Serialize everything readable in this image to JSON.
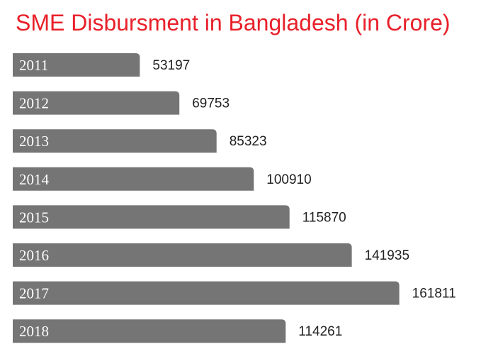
{
  "chart_data": {
    "type": "bar",
    "orientation": "horizontal",
    "title": "SME Disbursment in Bangladesh (in Crore)",
    "xlabel": "",
    "ylabel": "",
    "categories": [
      "2011",
      "2012",
      "2013",
      "2014",
      "2015",
      "2016",
      "2017",
      "2018"
    ],
    "values": [
      53197,
      69753,
      85323,
      100910,
      115870,
      141935,
      161811,
      114261
    ],
    "xlim": [
      0,
      172000
    ],
    "grid": false,
    "legend": "none",
    "colors": {
      "title": "#e8202a",
      "bar": "#757575",
      "bar_label": "#ffffff",
      "value_label": "#222222"
    }
  }
}
